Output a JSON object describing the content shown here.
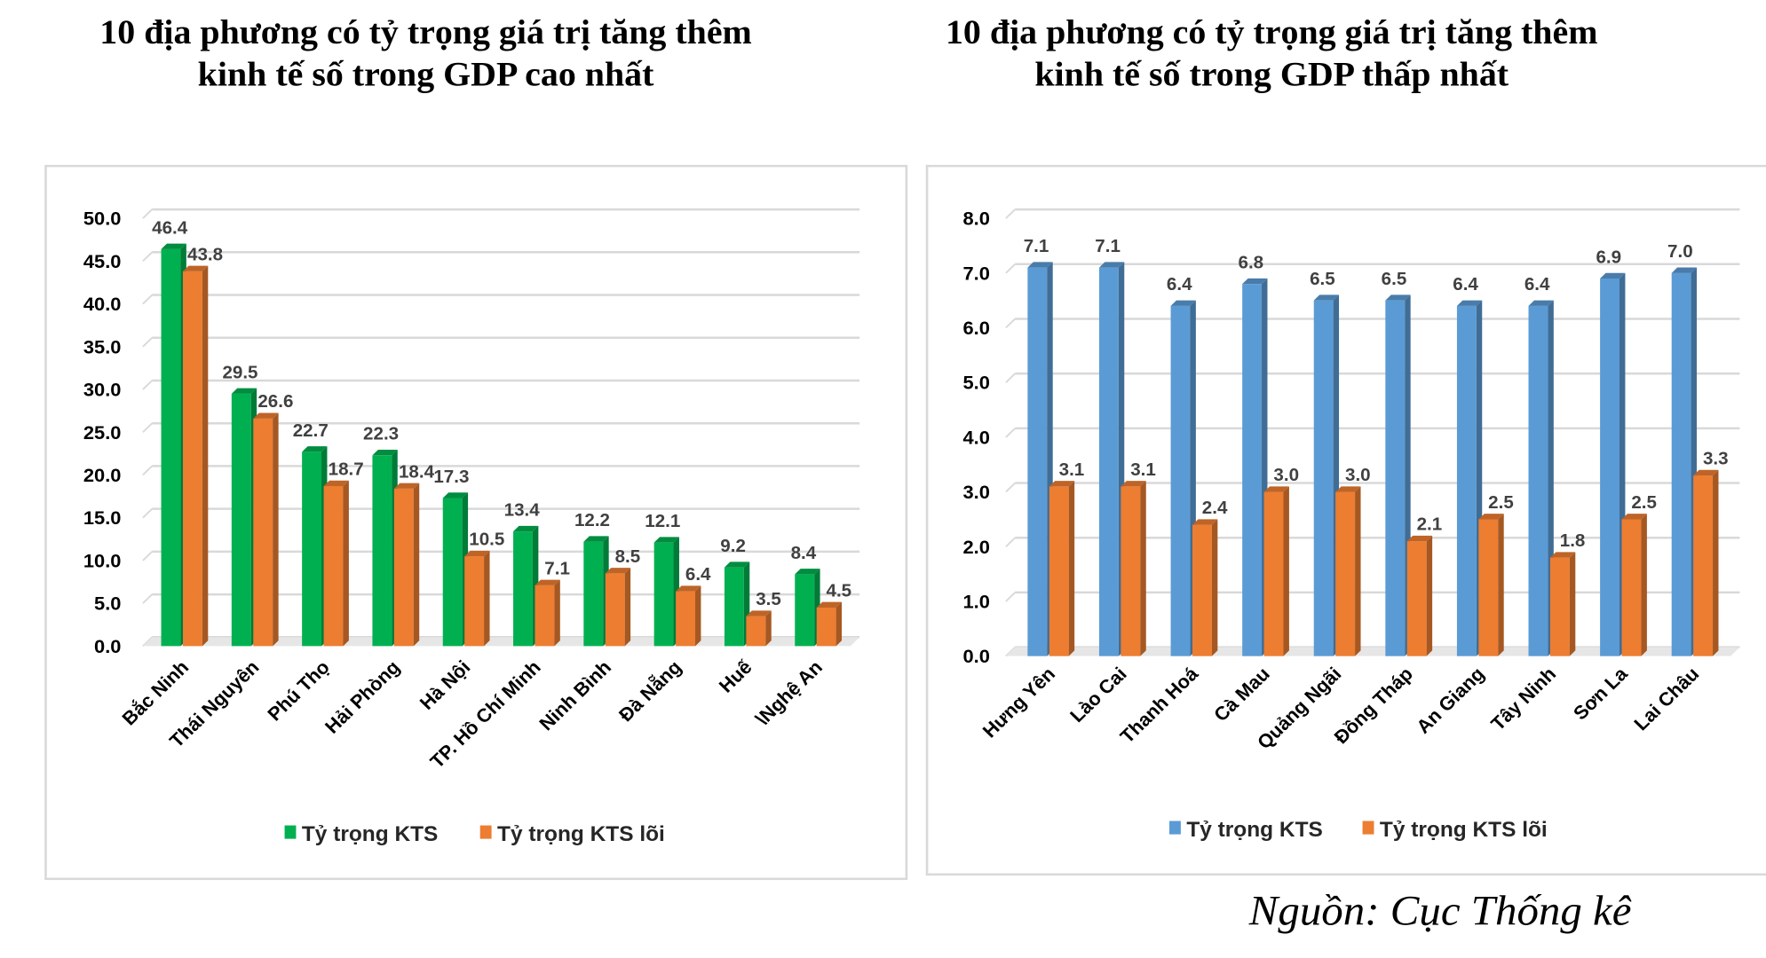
{
  "chart_data": [
    {
      "type": "bar",
      "title": "10 địa phương có tỷ trọng giá trị tăng thêm kinh tế số trong GDP cao nhất",
      "title_lines": [
        "10 địa phương có tỷ trọng giá trị tăng thêm",
        "kinh tế số trong GDP cao nhất"
      ],
      "categories": [
        "Bắc Ninh",
        "Thái Nguyên",
        "Phú Thọ",
        "Hải Phòng",
        "Hà Nội",
        "TP. Hồ Chí Minh",
        "Ninh Bình",
        "Đà Nẵng",
        "Huế",
        "\\Nghệ An"
      ],
      "series": [
        {
          "name": "Tỷ trọng KTS",
          "color": "#00b050",
          "values": [
            46.4,
            29.5,
            22.7,
            22.3,
            17.3,
            13.4,
            12.2,
            12.1,
            9.2,
            8.4
          ]
        },
        {
          "name": "Tỷ trọng KTS lõi",
          "color": "#ed7d31",
          "values": [
            43.8,
            26.6,
            18.7,
            18.4,
            10.5,
            7.1,
            8.5,
            6.4,
            3.5,
            4.5
          ]
        }
      ],
      "yticks": [
        "0.0",
        "5.0",
        "10.0",
        "15.0",
        "20.0",
        "25.0",
        "30.0",
        "35.0",
        "40.0",
        "45.0",
        "50.0"
      ],
      "ylim": [
        0,
        50
      ],
      "grid": true,
      "legend": "bottom"
    },
    {
      "type": "bar",
      "title": "10 địa phương có tỷ trọng giá trị tăng thêm kinh tế số trong GDP thấp nhất",
      "title_lines": [
        "10 địa phương có tỷ trọng giá trị tăng thêm",
        "kinh tế số trong GDP thấp nhất"
      ],
      "categories": [
        "Hưng Yên",
        "Lào Cai",
        "Thanh Hoá",
        "Cà Mau",
        "Quảng Ngãi",
        "Đồng Tháp",
        "An Giang",
        "Tây Ninh",
        "Sơn La",
        "Lai Châu"
      ],
      "series": [
        {
          "name": "Tỷ trọng KTS",
          "color": "#5b9bd5",
          "values": [
            7.1,
            7.1,
            6.4,
            6.8,
            6.5,
            6.5,
            6.4,
            6.4,
            6.9,
            7.0
          ]
        },
        {
          "name": "Tỷ trọng KTS lõi",
          "color": "#ed7d31",
          "values": [
            3.1,
            3.1,
            2.4,
            3.0,
            3.0,
            2.1,
            2.5,
            1.8,
            2.5,
            3.3
          ]
        }
      ],
      "yticks": [
        "0.0",
        "1.0",
        "2.0",
        "3.0",
        "4.0",
        "5.0",
        "6.0",
        "7.0",
        "8.0"
      ],
      "ylim": [
        0,
        8
      ],
      "grid": true,
      "legend": "bottom"
    }
  ],
  "source": "Nguồn: Cục Thống kê"
}
